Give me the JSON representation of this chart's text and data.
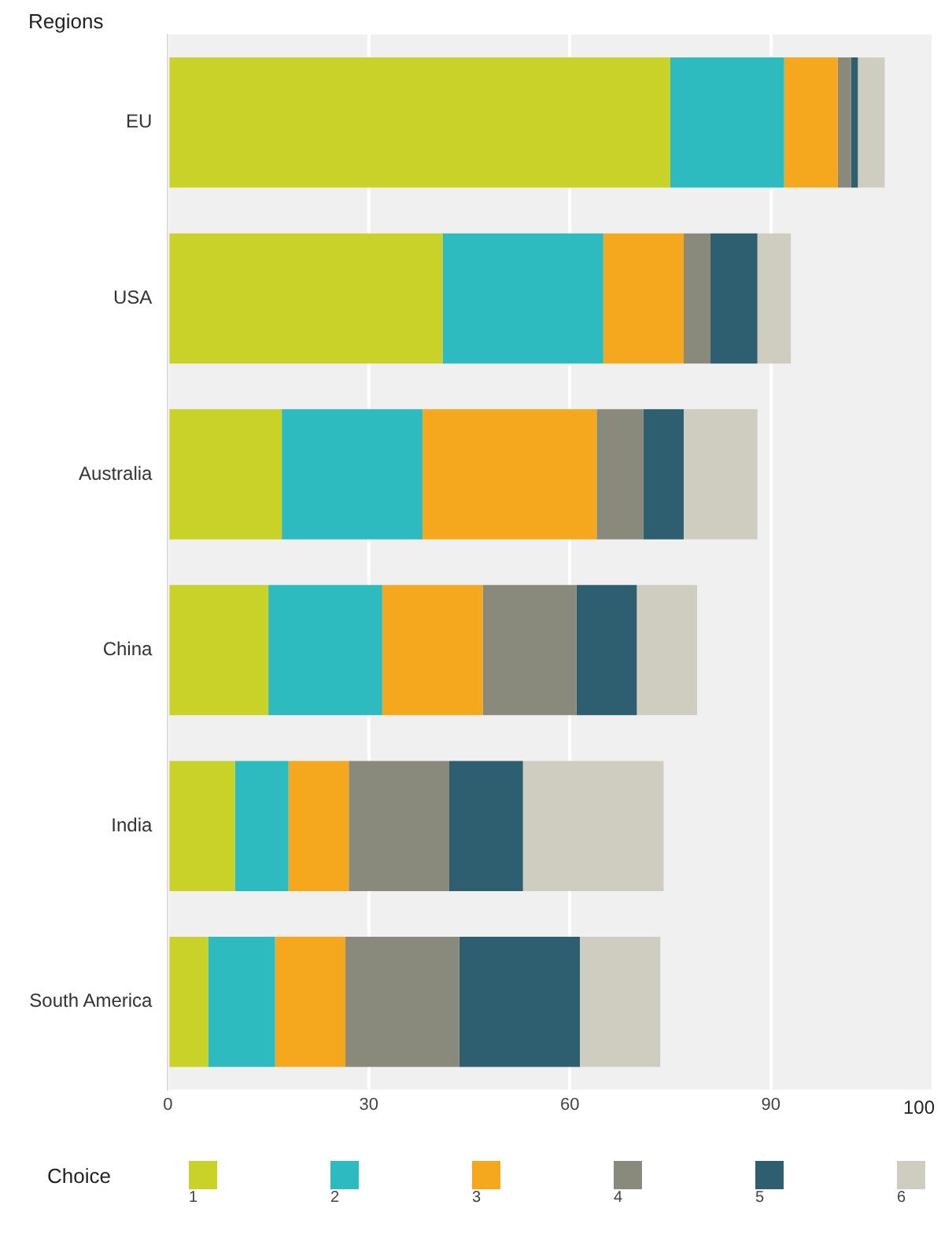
{
  "chart_data": {
    "type": "bar",
    "orientation": "horizontal",
    "stacked": true,
    "ylabel": "Regions",
    "legend_title": "Choice",
    "categories": [
      "EU",
      "USA",
      "Australia",
      "China",
      "India",
      "South America"
    ],
    "series": [
      {
        "name": "1",
        "color": "#c8d228",
        "values": [
          75,
          41,
          17,
          15,
          10,
          6
        ]
      },
      {
        "name": "2",
        "color": "#2dbbc0",
        "values": [
          17,
          24,
          21,
          17,
          8,
          10
        ]
      },
      {
        "name": "3",
        "color": "#f5a81e",
        "values": [
          8,
          12,
          26,
          15,
          9,
          10.5
        ]
      },
      {
        "name": "4",
        "color": "#8a8a7c",
        "values": [
          2,
          4,
          7,
          14,
          15,
          17
        ]
      },
      {
        "name": "5",
        "color": "#2e5f70",
        "values": [
          1,
          7,
          6,
          9,
          11,
          18
        ]
      },
      {
        "name": "6",
        "color": "#cfcdbf",
        "values": [
          4,
          5,
          11,
          9,
          21,
          12
        ]
      }
    ],
    "xlim": [
      0,
      114
    ],
    "xticks": [
      0,
      30,
      60,
      90
    ],
    "annotations": [
      "100"
    ],
    "grid": "x",
    "legend": "bottom"
  }
}
